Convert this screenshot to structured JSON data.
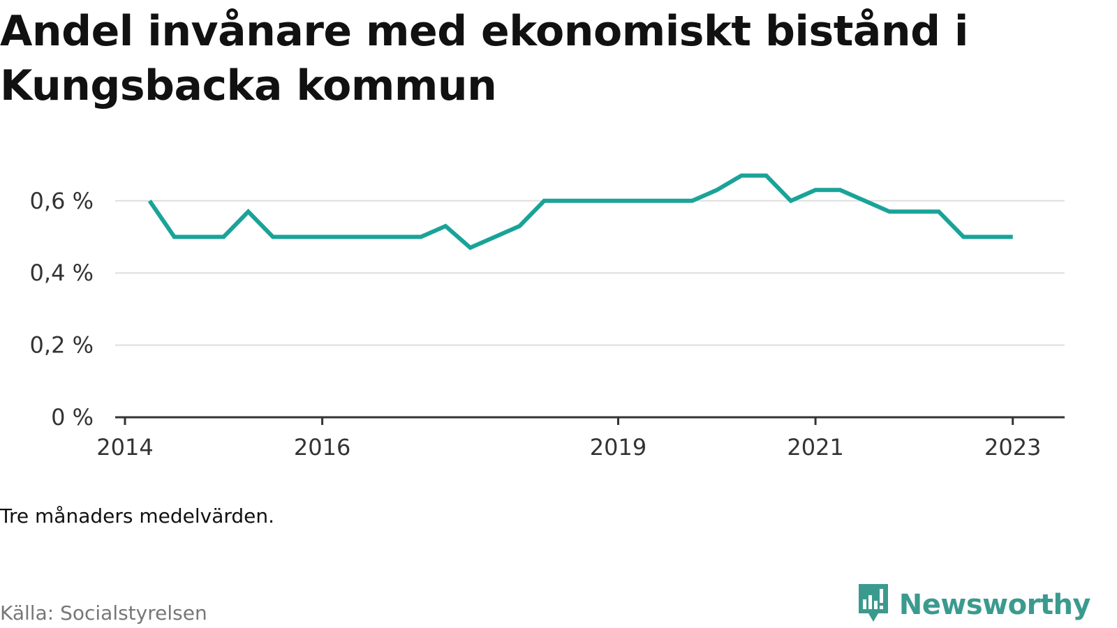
{
  "title": "Andel invånare med ekonomiskt bistånd i Kungsbacka kommun",
  "note": "Tre månaders medelvärden.",
  "source": "Källa: Socialstyrelsen",
  "brand": {
    "name": "Newsworthy",
    "icon": "newsworthy-logo-icon",
    "color": "#3b9a8e"
  },
  "colors": {
    "line": "#1aa398",
    "grid": "#dddddd",
    "axis": "#333333"
  },
  "chart_data": {
    "type": "line",
    "title": "Andel invånare med ekonomiskt bistånd i Kungsbacka kommun",
    "xlabel": "",
    "ylabel": "",
    "x_ticks": [
      {
        "label": "2014",
        "x": "2014-01"
      },
      {
        "label": "2016",
        "x": "2016-01"
      },
      {
        "label": "2019",
        "x": "2019-01"
      },
      {
        "label": "2021",
        "x": "2021-01"
      },
      {
        "label": "2023",
        "x": "2023-01"
      }
    ],
    "y_ticks": [
      {
        "value": 0,
        "label": "0 %"
      },
      {
        "value": 0.2,
        "label": "0,2 %"
      },
      {
        "value": 0.4,
        "label": "0,4 %"
      },
      {
        "value": 0.6,
        "label": "0,6 %"
      }
    ],
    "ylim": [
      0,
      0.7
    ],
    "grid": true,
    "series": [
      {
        "points": [
          {
            "x": "2014-04",
            "y": 0.6
          },
          {
            "x": "2014-07",
            "y": 0.5
          },
          {
            "x": "2014-10",
            "y": 0.5
          },
          {
            "x": "2015-01",
            "y": 0.5
          },
          {
            "x": "2015-04",
            "y": 0.57
          },
          {
            "x": "2015-07",
            "y": 0.5
          },
          {
            "x": "2015-10",
            "y": 0.5
          },
          {
            "x": "2016-01",
            "y": 0.5
          },
          {
            "x": "2016-04",
            "y": 0.5
          },
          {
            "x": "2016-07",
            "y": 0.5
          },
          {
            "x": "2016-10",
            "y": 0.5
          },
          {
            "x": "2017-01",
            "y": 0.5
          },
          {
            "x": "2017-04",
            "y": 0.53
          },
          {
            "x": "2017-07",
            "y": 0.47
          },
          {
            "x": "2017-10",
            "y": 0.5
          },
          {
            "x": "2018-01",
            "y": 0.53
          },
          {
            "x": "2018-04",
            "y": 0.6
          },
          {
            "x": "2018-07",
            "y": 0.6
          },
          {
            "x": "2018-10",
            "y": 0.6
          },
          {
            "x": "2019-01",
            "y": 0.6
          },
          {
            "x": "2019-04",
            "y": 0.6
          },
          {
            "x": "2019-07",
            "y": 0.6
          },
          {
            "x": "2019-10",
            "y": 0.6
          },
          {
            "x": "2020-01",
            "y": 0.63
          },
          {
            "x": "2020-04",
            "y": 0.67
          },
          {
            "x": "2020-07",
            "y": 0.67
          },
          {
            "x": "2020-10",
            "y": 0.6
          },
          {
            "x": "2021-01",
            "y": 0.63
          },
          {
            "x": "2021-04",
            "y": 0.63
          },
          {
            "x": "2021-07",
            "y": 0.6
          },
          {
            "x": "2021-10",
            "y": 0.57
          },
          {
            "x": "2022-01",
            "y": 0.57
          },
          {
            "x": "2022-04",
            "y": 0.57
          },
          {
            "x": "2022-07",
            "y": 0.5
          },
          {
            "x": "2022-10",
            "y": 0.5
          },
          {
            "x": "2023-01",
            "y": 0.5
          }
        ]
      }
    ]
  }
}
